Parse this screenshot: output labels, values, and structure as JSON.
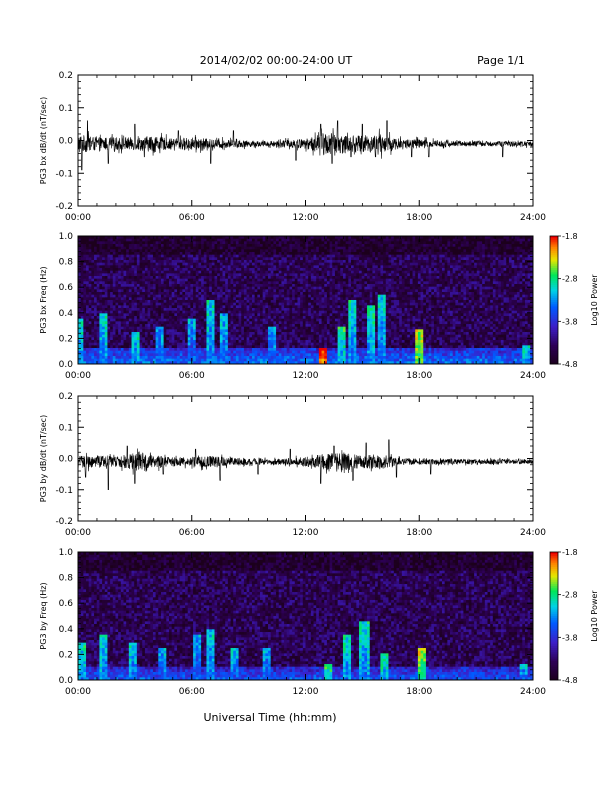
{
  "header": {
    "title": "2014/02/02  00:00-24:00 UT",
    "page_label": "Page 1/1"
  },
  "footer": {
    "xlabel": "Universal Time (hh:mm)"
  },
  "chart_data": [
    {
      "type": "line",
      "ylabel": "PG3 bx dB/dt (nT/sec)",
      "ylim": [
        -0.2,
        0.2
      ],
      "yticks": [
        "0.2",
        "0.1",
        "0.0",
        "-0.1",
        "-0.2"
      ],
      "xticks": [
        "00:00",
        "06:00",
        "12:00",
        "18:00",
        "24:00"
      ],
      "xlim_hours": [
        0,
        24
      ],
      "baseline": -0.01,
      "series": [
        {
          "color": "#000000",
          "noise_envelope": [
            [
              0,
              0.03
            ],
            [
              1,
              0.02
            ],
            [
              2,
              0.02
            ],
            [
              3,
              0.02
            ],
            [
              4,
              0.025
            ],
            [
              5,
              0.015
            ],
            [
              6,
              0.02
            ],
            [
              7,
              0.015
            ],
            [
              8,
              0.012
            ],
            [
              9,
              0.01
            ],
            [
              10,
              0.008
            ],
            [
              11,
              0.012
            ],
            [
              12,
              0.015
            ],
            [
              13,
              0.035
            ],
            [
              14,
              0.03
            ],
            [
              15,
              0.025
            ],
            [
              16,
              0.03
            ],
            [
              17,
              0.015
            ],
            [
              18,
              0.015
            ],
            [
              19,
              0.01
            ],
            [
              20,
              0.008
            ],
            [
              21,
              0.008
            ],
            [
              22,
              0.008
            ],
            [
              23,
              0.008
            ],
            [
              24,
              0.008
            ]
          ],
          "spikes": [
            [
              0.2,
              -0.09
            ],
            [
              0.5,
              0.06
            ],
            [
              1.6,
              -0.07
            ],
            [
              3.0,
              0.05
            ],
            [
              3.5,
              -0.05
            ],
            [
              5.3,
              0.03
            ],
            [
              7.0,
              -0.07
            ],
            [
              8.2,
              0.03
            ],
            [
              11.5,
              -0.06
            ],
            [
              12.8,
              0.05
            ],
            [
              13.4,
              -0.07
            ],
            [
              13.7,
              0.06
            ],
            [
              14.4,
              -0.05
            ],
            [
              15.0,
              0.05
            ],
            [
              15.7,
              -0.05
            ],
            [
              16.3,
              0.06
            ],
            [
              17.6,
              -0.05
            ],
            [
              18.5,
              -0.05
            ],
            [
              22.4,
              -0.05
            ]
          ]
        }
      ]
    },
    {
      "type": "heatmap",
      "ylabel": "PG3 bx Freq (Hz)",
      "ylim": [
        0.0,
        1.0
      ],
      "yticks": [
        "1.0",
        "0.8",
        "0.6",
        "0.4",
        "0.2",
        "0.0"
      ],
      "xticks": [
        "00:00",
        "06:00",
        "12:00",
        "18:00",
        "24:00"
      ],
      "colorbar": {
        "label": "Log10 Power",
        "min": -4.8,
        "max": -1.8,
        "ticks": [
          "-1.8",
          "-2.8",
          "-3.8",
          "-4.8"
        ]
      },
      "background_level": -4.4,
      "low_freq_band": {
        "max_freq": 0.12,
        "level": -3.4
      },
      "bursts": [
        [
          0.1,
          0.35,
          -3.5
        ],
        [
          1.3,
          0.4,
          -3.6
        ],
        [
          3.0,
          0.25,
          -3.6
        ],
        [
          4.3,
          0.3,
          -3.8
        ],
        [
          6.0,
          0.35,
          -3.8
        ],
        [
          7.0,
          0.5,
          -3.6
        ],
        [
          7.7,
          0.4,
          -3.7
        ],
        [
          10.2,
          0.3,
          -3.8
        ],
        [
          12.9,
          0.12,
          -2.2
        ],
        [
          13.9,
          0.3,
          -3.4
        ],
        [
          14.5,
          0.5,
          -3.6
        ],
        [
          15.4,
          0.45,
          -3.5
        ],
        [
          16.0,
          0.55,
          -3.6
        ],
        [
          18.0,
          0.28,
          -2.9
        ],
        [
          23.7,
          0.15,
          -3.6
        ]
      ]
    },
    {
      "type": "line",
      "ylabel": "PG3 by dB/dt (nT/sec)",
      "ylim": [
        -0.2,
        0.2
      ],
      "yticks": [
        "0.2",
        "0.1",
        "0.0",
        "-0.1",
        "-0.2"
      ],
      "xticks": [
        "00:00",
        "06:00",
        "12:00",
        "18:00",
        "24:00"
      ],
      "xlim_hours": [
        0,
        24
      ],
      "baseline": -0.01,
      "series": [
        {
          "color": "#000000",
          "noise_envelope": [
            [
              0,
              0.02
            ],
            [
              1,
              0.02
            ],
            [
              2,
              0.015
            ],
            [
              3,
              0.03
            ],
            [
              4,
              0.02
            ],
            [
              5,
              0.015
            ],
            [
              6,
              0.015
            ],
            [
              7,
              0.02
            ],
            [
              8,
              0.015
            ],
            [
              9,
              0.01
            ],
            [
              10,
              0.008
            ],
            [
              11,
              0.01
            ],
            [
              12,
              0.015
            ],
            [
              13,
              0.025
            ],
            [
              14,
              0.03
            ],
            [
              15,
              0.02
            ],
            [
              16,
              0.025
            ],
            [
              17,
              0.012
            ],
            [
              18,
              0.01
            ],
            [
              19,
              0.008
            ],
            [
              20,
              0.008
            ],
            [
              21,
              0.008
            ],
            [
              22,
              0.008
            ],
            [
              23,
              0.008
            ],
            [
              24,
              0.008
            ]
          ],
          "spikes": [
            [
              0.4,
              -0.06
            ],
            [
              1.6,
              -0.1
            ],
            [
              2.6,
              0.04
            ],
            [
              3.0,
              -0.08
            ],
            [
              4.5,
              -0.05
            ],
            [
              6.2,
              0.03
            ],
            [
              7.5,
              -0.07
            ],
            [
              9.5,
              -0.05
            ],
            [
              11.2,
              0.03
            ],
            [
              12.8,
              -0.08
            ],
            [
              13.5,
              0.04
            ],
            [
              14.5,
              -0.07
            ],
            [
              15.2,
              0.05
            ],
            [
              16.4,
              0.06
            ],
            [
              16.8,
              -0.06
            ],
            [
              18.6,
              -0.05
            ]
          ]
        }
      ]
    },
    {
      "type": "heatmap",
      "ylabel": "PG3 by Freq (Hz)",
      "ylim": [
        0.0,
        1.0
      ],
      "yticks": [
        "1.0",
        "0.8",
        "0.6",
        "0.4",
        "0.2",
        "0.0"
      ],
      "xticks": [
        "00:00",
        "06:00",
        "12:00",
        "18:00",
        "24:00"
      ],
      "colorbar": {
        "label": "Log10 Power",
        "min": -4.8,
        "max": -1.8,
        "ticks": [
          "-1.8",
          "-2.8",
          "-3.8",
          "-4.8"
        ]
      },
      "background_level": -4.4,
      "low_freq_band": {
        "max_freq": 0.1,
        "level": -3.5
      },
      "bursts": [
        [
          0.2,
          0.3,
          -3.5
        ],
        [
          1.4,
          0.35,
          -3.6
        ],
        [
          2.9,
          0.3,
          -3.6
        ],
        [
          4.4,
          0.25,
          -3.8
        ],
        [
          6.3,
          0.35,
          -3.8
        ],
        [
          7.0,
          0.4,
          -3.6
        ],
        [
          8.3,
          0.25,
          -3.7
        ],
        [
          10.0,
          0.25,
          -3.8
        ],
        [
          13.2,
          0.12,
          -3.3
        ],
        [
          14.2,
          0.35,
          -3.5
        ],
        [
          15.1,
          0.45,
          -3.6
        ],
        [
          16.2,
          0.2,
          -3.4
        ],
        [
          18.2,
          0.25,
          -3.0
        ],
        [
          23.5,
          0.12,
          -3.7
        ]
      ]
    }
  ]
}
